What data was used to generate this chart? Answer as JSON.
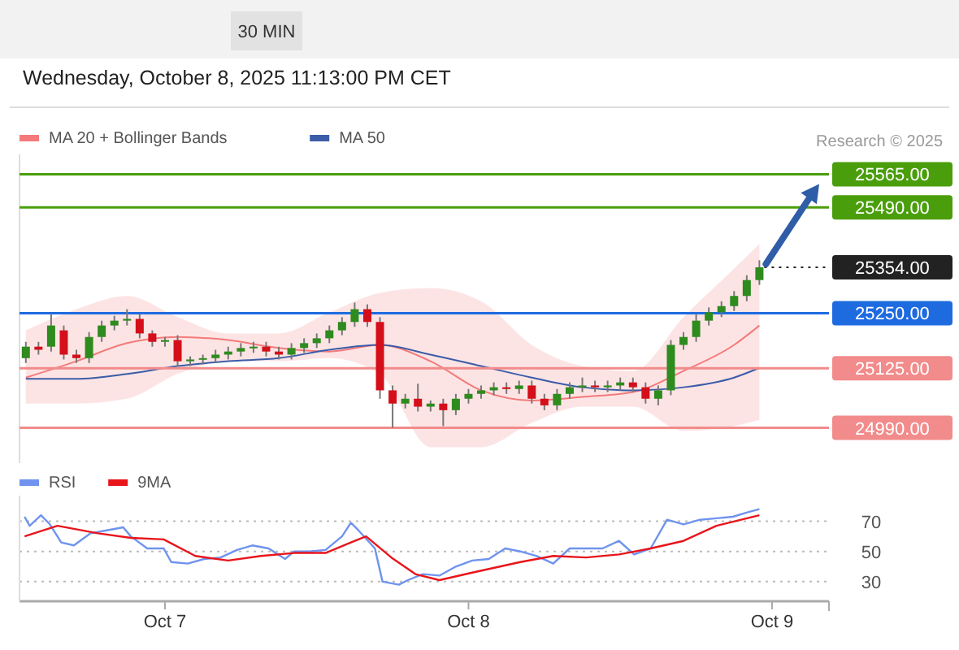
{
  "chart_data": [
    {
      "type": "candlestick",
      "subtitle": "Wednesday, October 8, 2025 11:13:00 PM CET",
      "annotations": [
        "30 MIN",
        "Research © 2025"
      ],
      "x": [
        "2025-10-06T13:00",
        "2025-10-06T14:00",
        "2025-10-06T15:00",
        "2025-10-06T16:00",
        "2025-10-06T17:00",
        "2025-10-06T18:00",
        "2025-10-06T19:00",
        "2025-10-06T20:00",
        "2025-10-06T21:00",
        "2025-10-06T22:00",
        "2025-10-06T23:00",
        "2025-10-07T00:00",
        "2025-10-07T01:00",
        "2025-10-07T02:00",
        "2025-10-07T03:00",
        "2025-10-07T04:00",
        "2025-10-07T05:00",
        "2025-10-07T06:00",
        "2025-10-07T07:00",
        "2025-10-07T08:00",
        "2025-10-07T09:00",
        "2025-10-07T10:00",
        "2025-10-07T11:00",
        "2025-10-07T12:00",
        "2025-10-07T13:00",
        "2025-10-07T14:00",
        "2025-10-07T15:00",
        "2025-10-07T16:00",
        "2025-10-07T17:00",
        "2025-10-07T18:00",
        "2025-10-07T19:00",
        "2025-10-07T20:00",
        "2025-10-07T21:00",
        "2025-10-07T22:00",
        "2025-10-07T23:00",
        "2025-10-08T00:00",
        "2025-10-08T01:00",
        "2025-10-08T02:00",
        "2025-10-08T03:00",
        "2025-10-08T04:00",
        "2025-10-08T05:00",
        "2025-10-08T06:00",
        "2025-10-08T07:00",
        "2025-10-08T08:00",
        "2025-10-08T09:00",
        "2025-10-08T10:00",
        "2025-10-08T11:00",
        "2025-10-08T12:00",
        "2025-10-08T13:00",
        "2025-10-08T14:00",
        "2025-10-08T15:00",
        "2025-10-08T16:00",
        "2025-10-08T17:00",
        "2025-10-08T18:00",
        "2025-10-08T19:00",
        "2025-10-08T20:00",
        "2025-10-08T21:00",
        "2025-10-08T22:00",
        "2025-10-08T23:00"
      ],
      "ohlc": [
        [
          25148,
          25185,
          25137,
          25174
        ],
        [
          25174,
          25185,
          25156,
          25167
        ],
        [
          25174,
          25248,
          25163,
          25222
        ],
        [
          25211,
          25222,
          25145,
          25156
        ],
        [
          25156,
          25167,
          25137,
          25148
        ],
        [
          25148,
          25207,
          25137,
          25196
        ],
        [
          25196,
          25233,
          25185,
          25222
        ],
        [
          25222,
          25244,
          25211,
          25233
        ],
        [
          25233,
          25259,
          25222,
          25237
        ],
        [
          25237,
          25248,
          25193,
          25204
        ],
        [
          25204,
          25211,
          25174,
          25185
        ],
        [
          25185,
          25196,
          25174,
          25189
        ],
        [
          25189,
          25200,
          25130,
          25141
        ],
        [
          25141,
          25152,
          25130,
          25145
        ],
        [
          25145,
          25156,
          25134,
          25148
        ],
        [
          25148,
          25167,
          25137,
          25156
        ],
        [
          25156,
          25174,
          25145,
          25163
        ],
        [
          25163,
          25182,
          25152,
          25171
        ],
        [
          25171,
          25185,
          25160,
          25174
        ],
        [
          25174,
          25185,
          25152,
          25163
        ],
        [
          25163,
          25174,
          25145,
          25156
        ],
        [
          25156,
          25182,
          25145,
          25171
        ],
        [
          25171,
          25193,
          25160,
          25182
        ],
        [
          25182,
          25204,
          25171,
          25193
        ],
        [
          25193,
          25222,
          25182,
          25211
        ],
        [
          25211,
          25241,
          25200,
          25230
        ],
        [
          25230,
          25274,
          25219,
          25259
        ],
        [
          25259,
          25270,
          25219,
          25230
        ],
        [
          25230,
          25241,
          25056,
          25075
        ],
        [
          25075,
          25086,
          24990,
          25045
        ],
        [
          25045,
          25067,
          25034,
          25056
        ],
        [
          25056,
          25090,
          25027,
          25038
        ],
        [
          25038,
          25052,
          25027,
          25045
        ],
        [
          25045,
          25056,
          24994,
          25030
        ],
        [
          25030,
          25067,
          25019,
          25056
        ],
        [
          25056,
          25078,
          25045,
          25067
        ],
        [
          25067,
          25086,
          25056,
          25075
        ],
        [
          25075,
          25093,
          25064,
          25082
        ],
        [
          25082,
          25093,
          25067,
          25078
        ],
        [
          25078,
          25097,
          25067,
          25086
        ],
        [
          25086,
          25097,
          25045,
          25056
        ],
        [
          25056,
          25067,
          25030,
          25041
        ],
        [
          25041,
          25078,
          25030,
          25067
        ],
        [
          25067,
          25093,
          25056,
          25082
        ],
        [
          25082,
          25104,
          25071,
          25086
        ],
        [
          25086,
          25097,
          25071,
          25082
        ],
        [
          25082,
          25097,
          25071,
          25086
        ],
        [
          25086,
          25104,
          25075,
          25093
        ],
        [
          25093,
          25104,
          25071,
          25082
        ],
        [
          25082,
          25093,
          25045,
          25056
        ],
        [
          25056,
          25086,
          25041,
          25075
        ],
        [
          25075,
          25189,
          25064,
          25178
        ],
        [
          25178,
          25207,
          25167,
          25196
        ],
        [
          25196,
          25248,
          25185,
          25233
        ],
        [
          25233,
          25263,
          25222,
          25252
        ],
        [
          25252,
          25277,
          25241,
          25266
        ],
        [
          25266,
          25300,
          25255,
          25289
        ],
        [
          25289,
          25336,
          25277,
          25325
        ],
        [
          25325,
          25370,
          25314,
          25354
        ]
      ],
      "series": [
        {
          "type": "line",
          "name": "MA 20 + Bollinger Bands",
          "color": "#f47a7a",
          "x": [
            "2025-10-06T13:00",
            "2025-10-06T17:00",
            "2025-10-06T21:00",
            "2025-10-07T01:00",
            "2025-10-07T05:00",
            "2025-10-07T09:00",
            "2025-10-07T13:00",
            "2025-10-07T17:00",
            "2025-10-07T21:00",
            "2025-10-08T01:00",
            "2025-10-08T05:00",
            "2025-10-08T09:00",
            "2025-10-08T13:00",
            "2025-10-08T17:00",
            "2025-10-08T21:00",
            "2025-10-08T23:00"
          ],
          "values": [
            25104,
            25141,
            25182,
            25196,
            25189,
            25171,
            25163,
            25178,
            25141,
            25075,
            25052,
            25060,
            25071,
            25119,
            25178,
            25222
          ],
          "lower": [
            25045,
            25045,
            25056,
            25112,
            25141,
            25141,
            25148,
            25112,
            24946,
            24946,
            25001,
            25038,
            25038,
            24983,
            24994,
            25008
          ],
          "upper": [
            25211,
            25259,
            25289,
            25241,
            25204,
            25204,
            25252,
            25296,
            25307,
            25277,
            25178,
            25130,
            25119,
            25241,
            25351,
            25407
          ]
        },
        {
          "type": "line",
          "name": "MA 50",
          "color": "#3b5ca8",
          "x": [
            "2025-10-06T13:00",
            "2025-10-06T17:00",
            "2025-10-06T21:00",
            "2025-10-07T01:00",
            "2025-10-07T05:00",
            "2025-10-07T09:00",
            "2025-10-07T13:00",
            "2025-10-07T17:00",
            "2025-10-07T21:00",
            "2025-10-08T01:00",
            "2025-10-08T05:00",
            "2025-10-08T09:00",
            "2025-10-08T13:00",
            "2025-10-08T17:00",
            "2025-10-08T21:00",
            "2025-10-08T23:00"
          ],
          "values": [
            25101,
            25101,
            25112,
            25130,
            25141,
            25148,
            25167,
            25178,
            25156,
            25130,
            25104,
            25082,
            25075,
            25082,
            25104,
            25126
          ]
        }
      ],
      "xlim": [
        "2025-10-06T12:30",
        "2025-10-09T04:30"
      ],
      "ylim": [
        24910,
        25610
      ],
      "ref_lines": [
        {
          "axis": "y",
          "value": 25565,
          "label": "25565.00",
          "color": "#4a9e0c",
          "line_style": "solid"
        },
        {
          "axis": "y",
          "value": 25490,
          "label": "25490.00",
          "color": "#4a9e0c",
          "line_style": "solid"
        },
        {
          "axis": "y",
          "value": 25354,
          "label": "25354.00",
          "color": "#222222",
          "line_style": "dotted"
        },
        {
          "axis": "y",
          "value": 25250,
          "label": "25250.00",
          "color": "#1e6be0",
          "line_style": "solid"
        },
        {
          "axis": "y",
          "value": 25125,
          "label": "25125.00",
          "color": "#f28b8b",
          "line_style": "solid"
        },
        {
          "axis": "y",
          "value": 24990,
          "label": "24990.00",
          "color": "#f28b8b",
          "line_style": "solid"
        }
      ],
      "legend": "top left"
    },
    {
      "type": "line",
      "series": [
        {
          "name": "RSI",
          "color": "#6f93ee",
          "x": [
            "2025-10-06T12:54",
            "2025-10-06T13:18",
            "2025-10-06T14:12",
            "2025-10-06T14:54",
            "2025-10-06T15:48",
            "2025-10-06T16:48",
            "2025-10-06T18:06",
            "2025-10-06T19:24",
            "2025-10-06T20:42",
            "2025-10-06T21:18",
            "2025-10-06T22:36",
            "2025-10-06T23:54",
            "2025-10-07T00:30",
            "2025-10-07T01:48",
            "2025-10-07T03:06",
            "2025-10-07T04:24",
            "2025-10-07T05:42",
            "2025-10-07T06:54",
            "2025-10-07T08:12",
            "2025-10-07T09:30",
            "2025-10-07T10:12",
            "2025-10-07T11:24",
            "2025-10-07T12:42",
            "2025-10-07T14:00",
            "2025-10-07T14:42",
            "2025-10-07T15:18",
            "2025-10-07T16:36",
            "2025-10-07T17:12",
            "2025-10-07T18:30",
            "2025-10-07T19:12",
            "2025-10-07T20:24",
            "2025-10-07T21:42",
            "2025-10-07T23:00",
            "2025-10-08T00:18",
            "2025-10-08T01:36",
            "2025-10-08T02:54",
            "2025-10-08T04:06",
            "2025-10-08T05:24",
            "2025-10-08T06:42",
            "2025-10-08T08:00",
            "2025-10-08T09:18",
            "2025-10-08T10:36",
            "2025-10-08T11:54",
            "2025-10-08T13:06",
            "2025-10-08T14:24",
            "2025-10-08T15:42",
            "2025-10-08T17:00",
            "2025-10-08T18:18",
            "2025-10-08T19:36",
            "2025-10-08T20:54",
            "2025-10-08T22:06",
            "2025-10-08T23:00"
          ],
          "values": [
            73,
            67,
            74,
            68,
            56,
            54,
            62,
            64,
            66,
            60,
            52,
            52,
            43,
            42,
            45,
            46,
            51,
            54,
            52,
            45,
            50,
            50,
            51,
            60,
            69,
            64,
            52,
            30,
            28,
            31,
            35,
            34,
            40,
            44,
            45,
            52,
            50,
            47,
            42,
            52,
            52,
            52,
            57,
            48,
            52,
            71,
            68,
            71,
            72,
            73,
            76,
            78
          ]
        },
        {
          "name": "9MA",
          "color": "#e8151b",
          "x": [
            "2025-10-06T12:54",
            "2025-10-06T15:30",
            "2025-10-06T18:42",
            "2025-10-06T21:18",
            "2025-10-06T23:54",
            "2025-10-07T02:24",
            "2025-10-07T05:00",
            "2025-10-07T07:36",
            "2025-10-07T10:12",
            "2025-10-07T12:42",
            "2025-10-07T14:42",
            "2025-10-07T15:54",
            "2025-10-07T17:54",
            "2025-10-07T19:48",
            "2025-10-07T21:42",
            "2025-10-08T00:18",
            "2025-10-08T04:06",
            "2025-10-08T06:42",
            "2025-10-08T09:18",
            "2025-10-08T11:54",
            "2025-10-08T14:24",
            "2025-10-08T17:00",
            "2025-10-08T19:36",
            "2025-10-08T23:00"
          ],
          "values": [
            60,
            67,
            62,
            59,
            58,
            47,
            44,
            47,
            49,
            49,
            56,
            60,
            46,
            35,
            31,
            36,
            43,
            47,
            46,
            48,
            52,
            57,
            67,
            74
          ]
        }
      ],
      "xlim": [
        "2025-10-06T12:30",
        "2025-10-09T04:30"
      ],
      "xticks": [
        {
          "value": "2025-10-07",
          "label": "Oct 7"
        },
        {
          "value": "2025-10-08",
          "label": "Oct 8"
        },
        {
          "value": "2025-10-09",
          "label": "Oct 9"
        }
      ],
      "ylim": [
        17,
        87
      ],
      "yticks": [
        30,
        50,
        70
      ],
      "grid": "y",
      "legend": "top left",
      "marker": "none",
      "line_style": "solid"
    }
  ]
}
